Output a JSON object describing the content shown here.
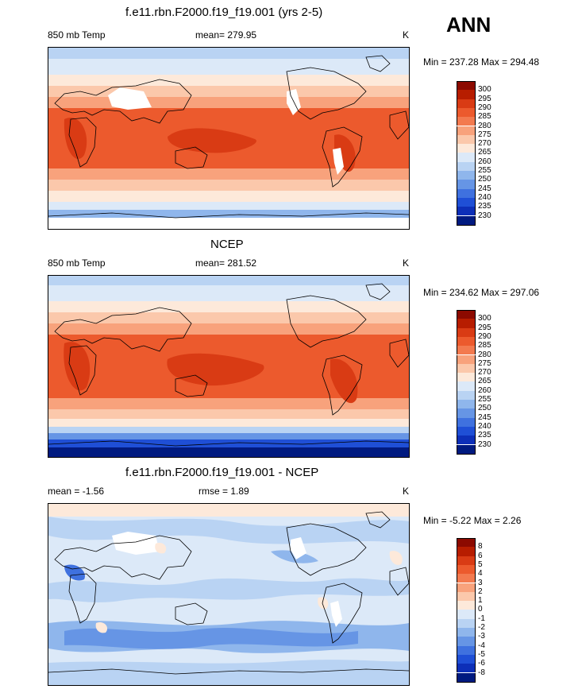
{
  "season": "ANN",
  "panels": [
    {
      "title": "f.e11.rbn.F2000.f19_f19.001 (yrs 2-5)",
      "left_label": "850 mb Temp",
      "mid_label": "mean= 279.95",
      "unit": "K",
      "minmax": "Min = 237.28 Max = 294.48",
      "levels": [
        "300",
        "295",
        "290",
        "285",
        "280",
        "275",
        "270",
        "265",
        "260",
        "255",
        "250",
        "245",
        "240",
        "235",
        "230"
      ]
    },
    {
      "title": "NCEP",
      "left_label": "850 mb Temp",
      "mid_label": "mean= 281.52",
      "unit": "K",
      "minmax": "Min = 234.62 Max = 297.06",
      "levels": [
        "300",
        "295",
        "290",
        "285",
        "280",
        "275",
        "270",
        "265",
        "260",
        "255",
        "250",
        "245",
        "240",
        "235",
        "230"
      ]
    },
    {
      "title": "f.e11.rbn.F2000.f19_f19.001 - NCEP",
      "left_label": "mean =  -1.56",
      "mid_label": "rmse =   1.89",
      "unit": "K",
      "minmax": "Min =  -5.22 Max =   2.26",
      "levels": [
        "8",
        "6",
        "5",
        "4",
        "3",
        "2",
        "1",
        "0",
        "-1",
        "-2",
        "-3",
        "-4",
        "-5",
        "-6",
        "-8"
      ]
    }
  ],
  "colors": {
    "abs_scale": [
      "#8c0a00",
      "#b71d00",
      "#d93b14",
      "#ec5a2d",
      "#f37a4f",
      "#f8a27c",
      "#fbc8ab",
      "#fde9da",
      "#dce9f8",
      "#b9d3f3",
      "#8fb6ec",
      "#6695e5",
      "#3f71df",
      "#1f4fd6",
      "#0d2fb8",
      "#001a80"
    ],
    "diff_scale": [
      "#8c0a00",
      "#b71d00",
      "#d93b14",
      "#ec5a2d",
      "#f37a4f",
      "#f8a27c",
      "#fbc8ab",
      "#fde9da",
      "#dce9f8",
      "#b9d3f3",
      "#8fb6ec",
      "#6695e5",
      "#3f71df",
      "#1f4fd6",
      "#0d2fb8",
      "#001a80"
    ]
  }
}
